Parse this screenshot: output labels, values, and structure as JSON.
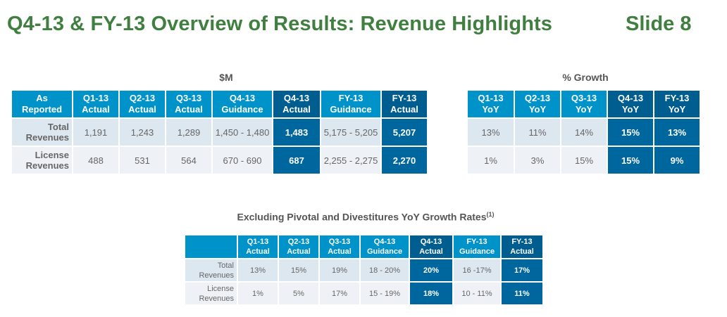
{
  "slide": {
    "title": "Q4-13 & FY-13 Overview of Results: Revenue Highlights",
    "number_label": "Slide 8"
  },
  "usd_table": {
    "caption": "$M",
    "headers": [
      [
        "As",
        "Reported"
      ],
      [
        "Q1-13",
        "Actual"
      ],
      [
        "Q2-13",
        "Actual"
      ],
      [
        "Q3-13",
        "Actual"
      ],
      [
        "Q4-13",
        "Guidance"
      ],
      [
        "Q4-13",
        "Actual"
      ],
      [
        "FY-13",
        "Guidance"
      ],
      [
        "FY-13",
        "Actual"
      ]
    ],
    "rows": [
      {
        "label": [
          "Total",
          "Revenues"
        ],
        "values": [
          "1,191",
          "1,243",
          "1,289",
          "1,450 - 1,480",
          "1,483",
          "5,175 - 5,205",
          "5,207"
        ]
      },
      {
        "label": [
          "License",
          "Revenues"
        ],
        "values": [
          "488",
          "531",
          "564",
          "670 - 690",
          "687",
          "2,255 - 2,275",
          "2,270"
        ]
      }
    ]
  },
  "growth_table": {
    "caption": "% Growth",
    "headers": [
      [
        "Q1-13",
        "YoY"
      ],
      [
        "Q2-13",
        "YoY"
      ],
      [
        "Q3-13",
        "YoY"
      ],
      [
        "Q4-13",
        "YoY"
      ],
      [
        "FY-13",
        "YoY"
      ]
    ],
    "rows": [
      {
        "values": [
          "13%",
          "11%",
          "14%",
          "15%",
          "13%"
        ]
      },
      {
        "values": [
          "1%",
          "3%",
          "15%",
          "15%",
          "9%"
        ]
      }
    ]
  },
  "excl_table": {
    "caption": "Excluding Pivotal and Divestitures YoY Growth Rates",
    "caption_sup": "(1)",
    "headers": [
      [
        "Q1-13",
        "Actual"
      ],
      [
        "Q2-13",
        "Actual"
      ],
      [
        "Q3-13",
        "Actual"
      ],
      [
        "Q4-13",
        "Guidance"
      ],
      [
        "Q4-13",
        "Actual"
      ],
      [
        "FY-13",
        "Guidance"
      ],
      [
        "FY-13",
        "Actual"
      ]
    ],
    "rows": [
      {
        "label": [
          "Total",
          "Revenues"
        ],
        "values": [
          "13%",
          "15%",
          "19%",
          "18 - 20%",
          "20%",
          "16 -17%",
          "17%"
        ]
      },
      {
        "label": [
          "License",
          "Revenues"
        ],
        "values": [
          "1%",
          "5%",
          "17%",
          "15 - 19%",
          "18%",
          "10 - 11%",
          "11%"
        ]
      }
    ]
  },
  "colors": {
    "title_green": "#3F7F3F",
    "header_blue": "#0093C9",
    "highlight_blue": "#005D8F",
    "cell_highlight": "#00679E",
    "row_light": "#DDE7F0"
  }
}
